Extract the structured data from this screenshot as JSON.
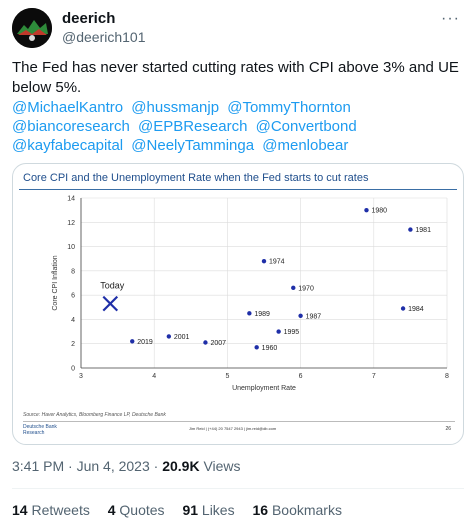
{
  "tweet": {
    "author_name": "deerich",
    "author_handle": "@deerich101",
    "more_label": "···",
    "text": "The Fed has never started cutting rates with CPI above 3% and UE below 5%.",
    "mentions": [
      "@MichaelKantro",
      "@hussmanjp",
      "@TommyThornton",
      "@biancoresearch",
      "@EPBResearch",
      "@Convertbond",
      "@kayfabecapital",
      "@NeelyTamminga",
      "@menlobear"
    ],
    "time": "3:41 PM · Jun 4, 2023 · ",
    "views_count": "20.9K",
    "views_label": " Views",
    "stats": [
      {
        "count": "14",
        "label": "Retweets"
      },
      {
        "count": "4",
        "label": "Quotes"
      },
      {
        "count": "91",
        "label": "Likes"
      },
      {
        "count": "16",
        "label": "Bookmarks"
      }
    ]
  },
  "media": {
    "source": "Source: Haver Analytics, Bloomberg Finance LP, Deutsche Bank",
    "logo_line1": "Deutsche Bank",
    "logo_line2": "Research",
    "contact": "Jim Reid | (+44) 20 7547 2943 | jim.reid@db.com",
    "page_number": "26"
  },
  "chart_data": {
    "type": "scatter",
    "title": "Core CPI and the Unemployment Rate when the Fed starts to cut rates",
    "xlabel": "Unemployment Rate",
    "ylabel": "Core CPI Inflation",
    "xlim": [
      3,
      8
    ],
    "ylim": [
      0,
      14
    ],
    "xticks": [
      3,
      4,
      5,
      6,
      7,
      8
    ],
    "yticks": [
      0,
      2,
      4,
      6,
      8,
      10,
      12,
      14
    ],
    "grid": true,
    "points": [
      {
        "label": "1980",
        "x": 6.9,
        "y": 13.0
      },
      {
        "label": "1981",
        "x": 7.5,
        "y": 11.4
      },
      {
        "label": "1974",
        "x": 5.5,
        "y": 8.8
      },
      {
        "label": "1970",
        "x": 5.9,
        "y": 6.6
      },
      {
        "label": "1989",
        "x": 5.3,
        "y": 4.5
      },
      {
        "label": "1987",
        "x": 6.0,
        "y": 4.3
      },
      {
        "label": "1984",
        "x": 7.4,
        "y": 4.9
      },
      {
        "label": "1995",
        "x": 5.7,
        "y": 3.0
      },
      {
        "label": "2001",
        "x": 4.2,
        "y": 2.6
      },
      {
        "label": "2019",
        "x": 3.7,
        "y": 2.2
      },
      {
        "label": "2007",
        "x": 4.7,
        "y": 2.1
      },
      {
        "label": "1960",
        "x": 5.4,
        "y": 1.7
      }
    ],
    "highlight": {
      "label": "Today",
      "x": 3.4,
      "y": 5.3,
      "marker": "x",
      "color": "#1f2fa8"
    },
    "point_color": "#1f2fa8"
  }
}
